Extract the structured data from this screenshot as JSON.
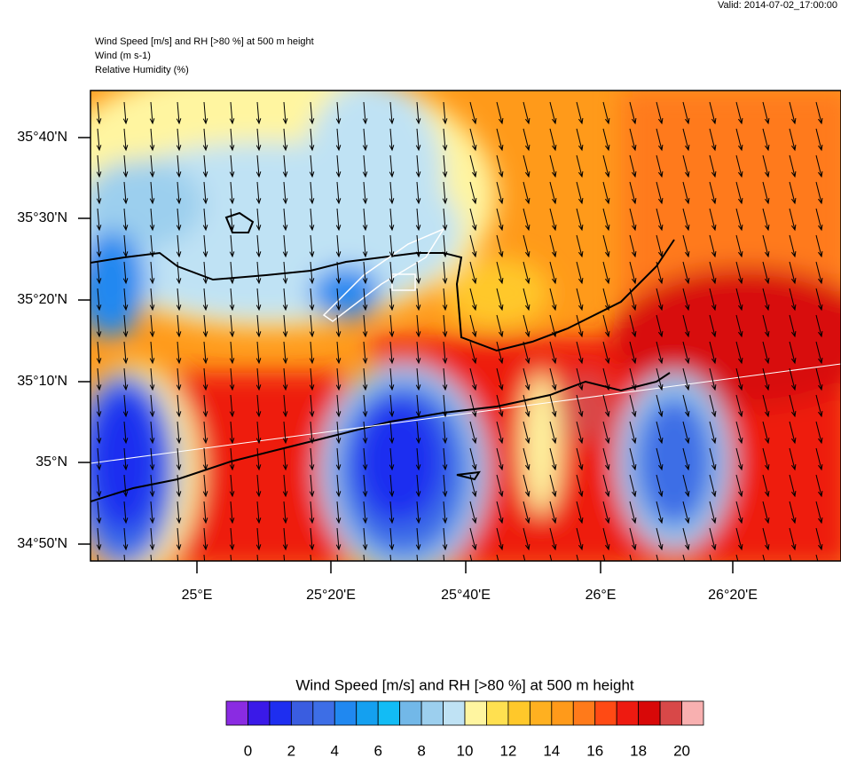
{
  "header": {
    "valid": "Valid: 2014-07-02_17:00:00",
    "title_lines": [
      "Wind Speed [m/s] and RH [>80 %] at 500 m height",
      "Wind   (m s-1)",
      "Relative Humidity   (%)"
    ]
  },
  "map": {
    "lat_labels": [
      "35°40'N",
      "35°30'N",
      "35°20'N",
      "35°10'N",
      "35°N",
      "34°50'N"
    ],
    "lon_labels": [
      "25°E",
      "25°20'E",
      "25°40'E",
      "26°E",
      "26°20'E"
    ]
  },
  "colorbar": {
    "title": "Wind Speed [m/s] and RH [>80 %] at 500 m height",
    "colors": [
      "#8a2be2",
      "#3a19e8",
      "#1e2ef0",
      "#3a5de0",
      "#3d6ee6",
      "#2088f0",
      "#14a0f0",
      "#12bcf5",
      "#72b8e8",
      "#9ccfee",
      "#bfe2f4",
      "#fff5a0",
      "#ffe050",
      "#ffc82a",
      "#ffb020",
      "#ff9a1a",
      "#ff7a1a",
      "#ff4a14",
      "#ee1a10",
      "#d80808",
      "#d84848",
      "#f8b0b0"
    ],
    "labels": [
      0,
      2,
      4,
      6,
      8,
      10,
      12,
      14,
      16,
      18,
      20
    ]
  }
}
